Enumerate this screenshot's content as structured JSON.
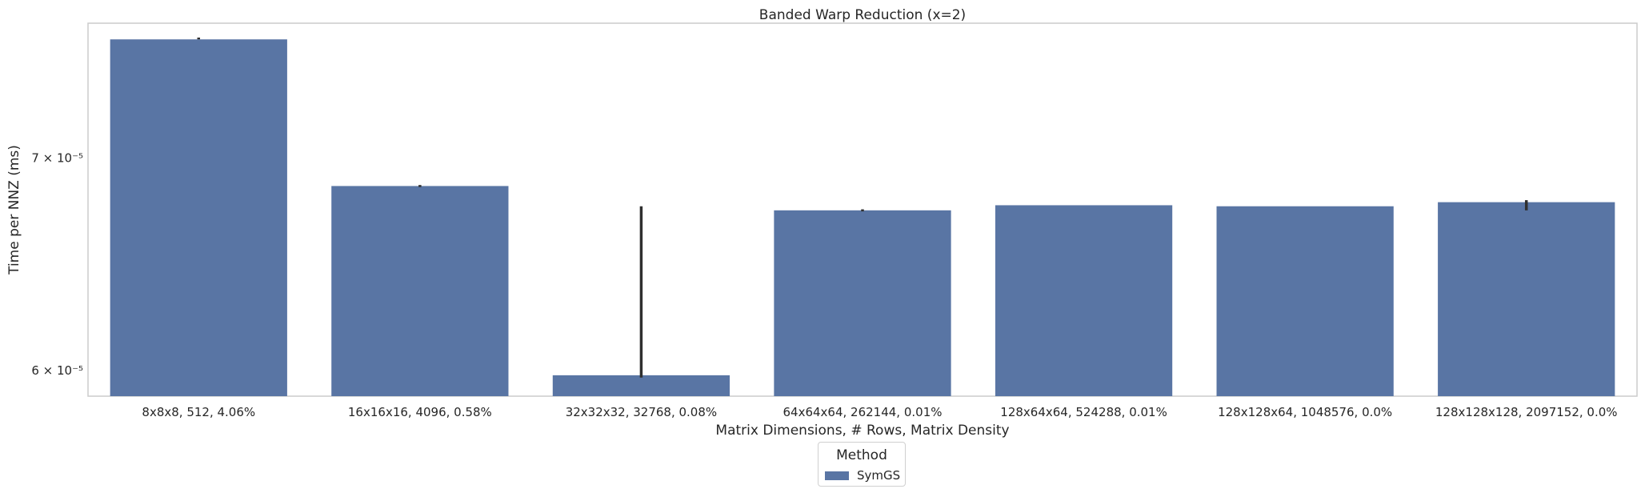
{
  "chart_data": {
    "type": "bar",
    "title": "Banded Warp Reduction (x=2)",
    "xlabel": "Matrix Dimensions, # Rows, Matrix Density",
    "ylabel": "Time per NNZ (ms)",
    "yscale": "log",
    "ylim": [
      5.89e-05,
      7.72e-05
    ],
    "yticks": [
      {
        "value": 6e-05,
        "label": "6 × 10⁻⁵"
      },
      {
        "value": 7e-05,
        "label": "7 × 10⁻⁵"
      }
    ],
    "categories": [
      "8x8x8, 512, 4.06%",
      "16x16x16, 4096, 0.58%",
      "32x32x32, 32768, 0.08%",
      "64x64x64, 262144, 0.01%",
      "128x64x64, 524288, 0.01%",
      "128x128x64, 1048576, 0.0%",
      "128x128x128, 2097152, 0.0%"
    ],
    "series": [
      {
        "name": "SymGS",
        "values": [
          7.63e-05,
          6.86e-05,
          5.98e-05,
          6.74e-05,
          6.765e-05,
          6.76e-05,
          6.78e-05
        ],
        "err_low": [
          7.63e-05,
          6.855e-05,
          5.97e-05,
          6.735e-05,
          6.765e-05,
          6.76e-05,
          6.74e-05
        ],
        "err_high": [
          7.64e-05,
          6.865e-05,
          6.76e-05,
          6.745e-05,
          6.765e-05,
          6.76e-05,
          6.79e-05
        ]
      }
    ],
    "legend": {
      "title": "Method",
      "position": "bottom-center"
    },
    "grid": false,
    "colors": {
      "bar": "#5975a4",
      "error": "#2f2f2f",
      "frame": "#cccccc"
    }
  }
}
